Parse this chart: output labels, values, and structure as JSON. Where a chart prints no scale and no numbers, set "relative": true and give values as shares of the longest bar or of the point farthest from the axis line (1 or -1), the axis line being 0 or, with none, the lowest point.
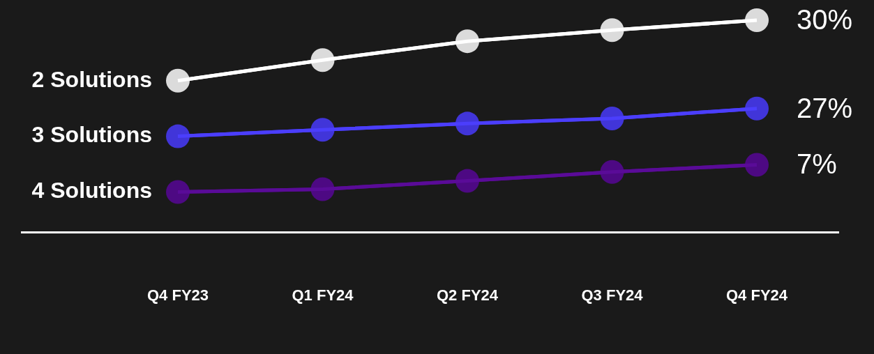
{
  "chart_data": {
    "type": "line",
    "relative": true,
    "marker": "circle",
    "line_style": "solid",
    "categories": [
      "Q4 FY23",
      "Q1 FY24",
      "Q2 FY24",
      "Q3 FY24",
      "Q4 FY24"
    ],
    "series": [
      {
        "name": "2 Solutions",
        "color": "#ffffff",
        "values": [
          0.715,
          0.812,
          0.901,
          0.953,
          1
        ]
      },
      {
        "name": "3 Solutions",
        "color": "#4b3efc",
        "values": [
          0.453,
          0.484,
          0.513,
          0.537,
          0.584
        ]
      },
      {
        "name": "4 Solutions",
        "color": "#5a0b98",
        "values": [
          0.191,
          0.204,
          0.243,
          0.285,
          0.319
        ]
      }
    ],
    "annotations": [
      {
        "text": "30%",
        "x": "Q4 FY24",
        "y": 1
      },
      {
        "text": "27%",
        "x": "Q4 FY24",
        "y": 0.584
      },
      {
        "text": "7%",
        "x": "Q4 FY24",
        "y": 0.319
      }
    ]
  }
}
